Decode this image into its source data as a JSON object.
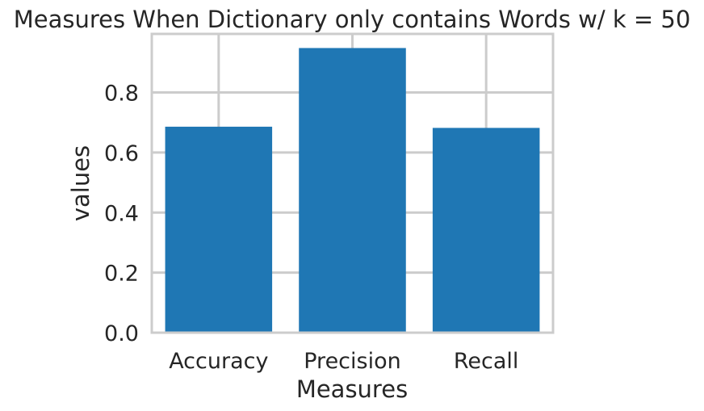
{
  "chart_data": {
    "type": "bar",
    "title": "Measures When Dictionary only contains Words w/ k = 50",
    "xlabel": "Measures",
    "ylabel": "values",
    "categories": [
      "Accuracy",
      "Precision",
      "Recall"
    ],
    "values": [
      0.686,
      0.948,
      0.682
    ],
    "ylim": [
      0,
      0.995
    ],
    "yticks": [
      0.0,
      0.2,
      0.4,
      0.6,
      0.8
    ],
    "ytick_labels": [
      "0.0",
      "0.2",
      "0.4",
      "0.6",
      "0.8"
    ],
    "grid": true,
    "bar_color": "#1f77b4",
    "grid_color": "#cccccc"
  }
}
